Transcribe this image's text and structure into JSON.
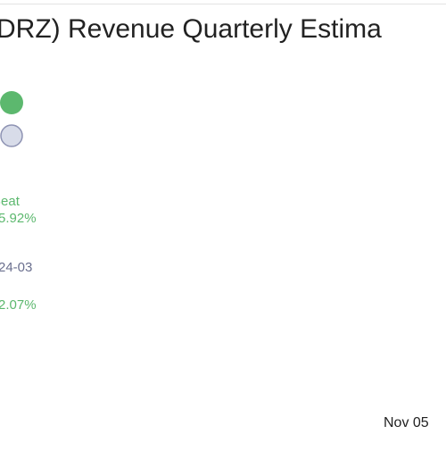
{
  "title": "DRZ) Revenue Quarterly Estima",
  "annotations": {
    "label": "Beat",
    "beat_pct": "5.92%",
    "period": "24-03",
    "second_pct": "2.07%"
  },
  "x_label": "Nov 05"
}
